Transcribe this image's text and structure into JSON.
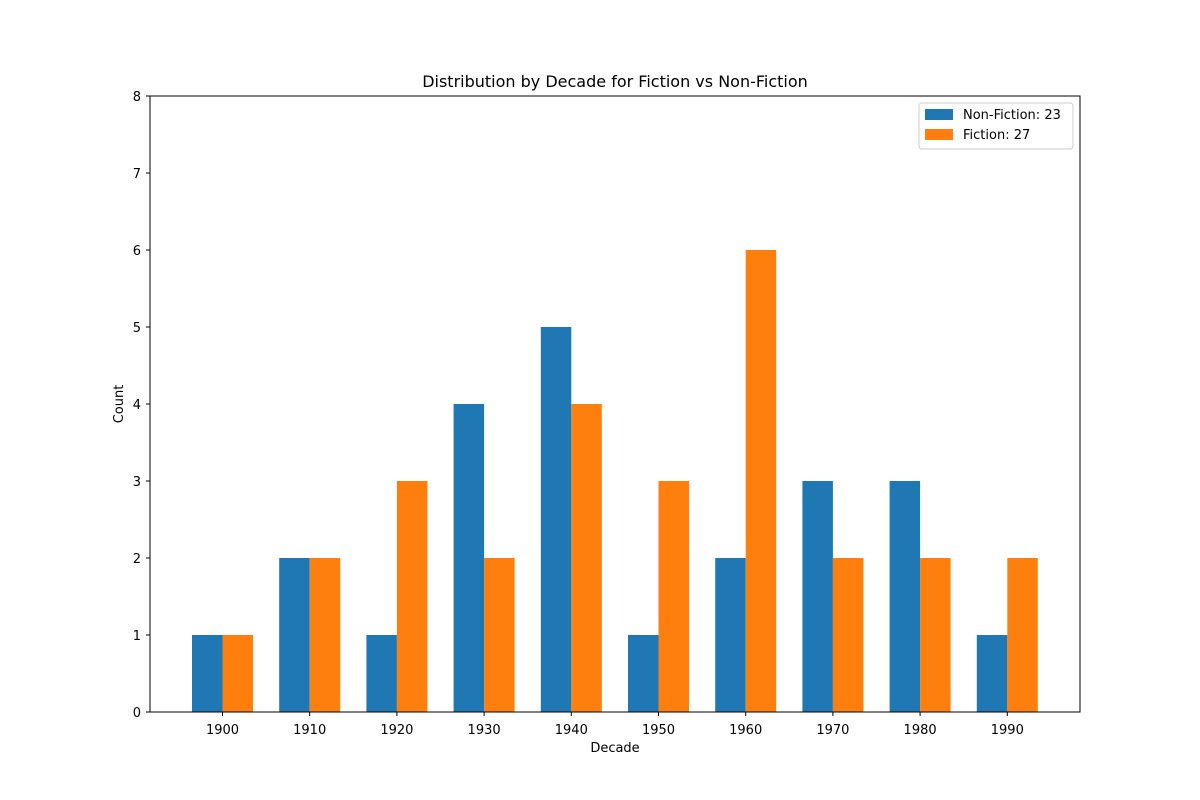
{
  "chart_data": {
    "type": "bar",
    "title": "Distribution by Decade for Fiction vs Non-Fiction",
    "xlabel": "Decade",
    "ylabel": "Count",
    "categories": [
      "1900",
      "1910",
      "1920",
      "1930",
      "1940",
      "1950",
      "1960",
      "1970",
      "1980",
      "1990"
    ],
    "series": [
      {
        "name": "Non-Fiction",
        "legend_label": "Non-Fiction: 23",
        "color": "#1f77b4",
        "values": [
          1,
          2,
          1,
          4,
          5,
          1,
          2,
          3,
          3,
          1
        ]
      },
      {
        "name": "Fiction",
        "legend_label": "Fiction: 27",
        "color": "#ff7f0e",
        "values": [
          1,
          2,
          3,
          2,
          4,
          3,
          6,
          2,
          2,
          2
        ]
      }
    ],
    "ylim": [
      0,
      8
    ],
    "yticks": [
      "0",
      "1",
      "2",
      "3",
      "4",
      "5",
      "6",
      "7",
      "8"
    ],
    "legend_position": "top-right",
    "grid": false
  }
}
